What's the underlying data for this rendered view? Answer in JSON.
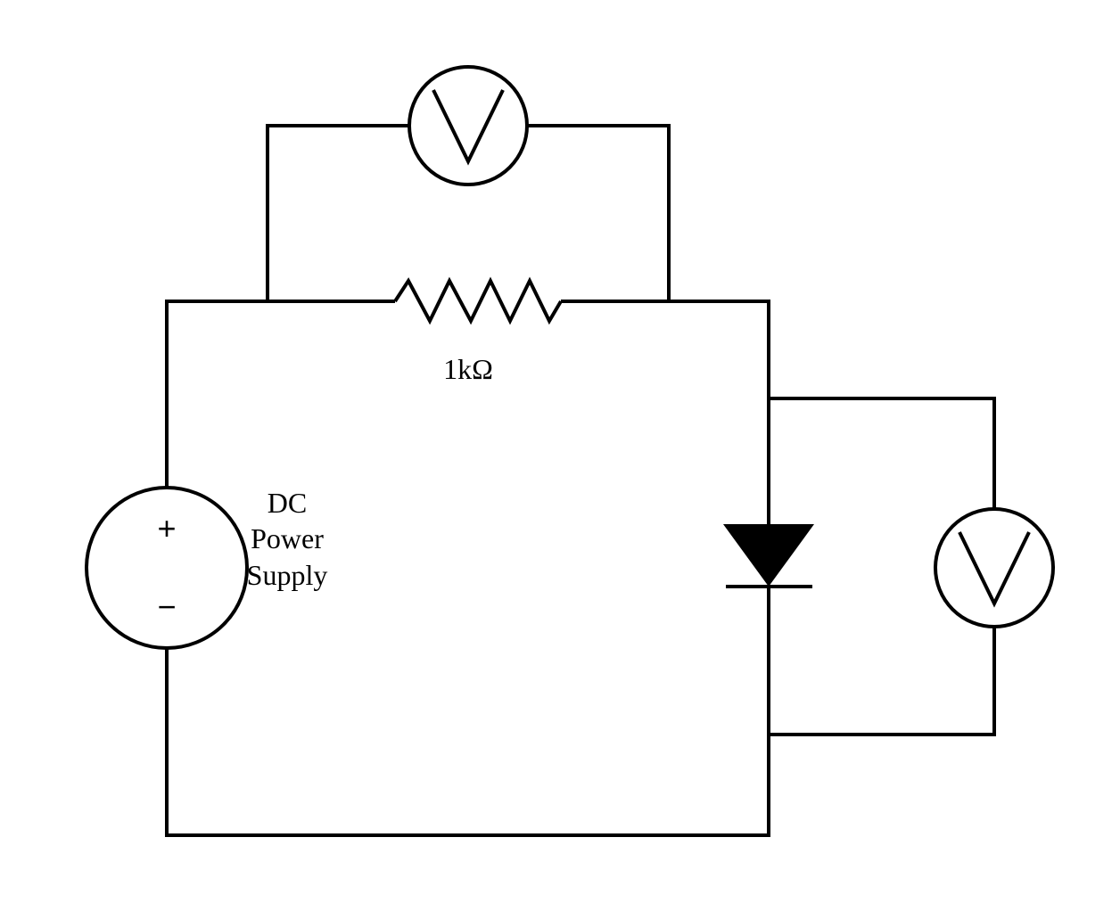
{
  "diagram": {
    "stroke_color": "#000000",
    "background": "#ffffff",
    "resistor": {
      "value_label": "1kΩ"
    },
    "power_supply": {
      "label_lines": [
        "DC",
        "Power",
        "Supply"
      ],
      "plus_sign": "+",
      "minus_sign": "−"
    },
    "voltmeter_resistor": {
      "symbol": "V"
    },
    "voltmeter_diode": {
      "symbol": "V"
    },
    "diode": {
      "symbol": "diode-icon"
    }
  }
}
